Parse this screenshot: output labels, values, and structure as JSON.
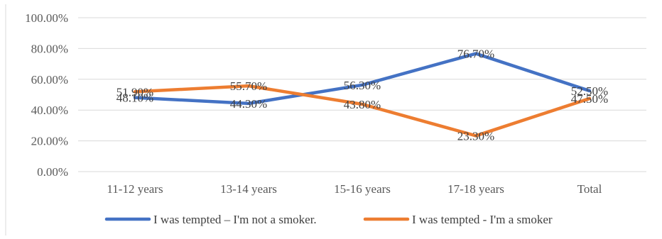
{
  "chart_data": {
    "type": "line",
    "categories": [
      "11-12 years",
      "13-14 years",
      "15-16 years",
      "17-18 years",
      "Total"
    ],
    "series": [
      {
        "name": "I was tempted – I'm not a smoker.",
        "values": [
          48.1,
          44.3,
          56.3,
          76.7,
          52.5
        ],
        "labels": [
          "48.10%",
          "44.30%",
          "56.30%",
          "76.70%",
          "52.50%"
        ],
        "color": "#4472C4"
      },
      {
        "name": "I was tempted - I'm a smoker",
        "values": [
          51.9,
          55.7,
          43.8,
          23.3,
          47.5
        ],
        "labels": [
          "51.90%",
          "55.70%",
          "43.80%",
          "23.30%",
          "47.50%"
        ],
        "color": "#ED7D31"
      }
    ],
    "y_ticks": [
      "0.00%",
      "20.00%",
      "40.00%",
      "60.00%",
      "80.00%",
      "100.00%"
    ],
    "ylim": [
      0,
      100
    ],
    "grid": true,
    "legend_position": "bottom"
  }
}
